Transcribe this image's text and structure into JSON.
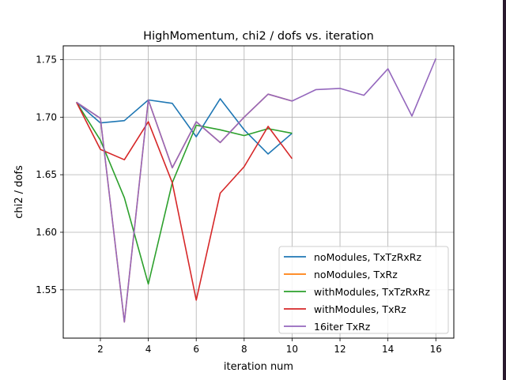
{
  "chart_data": {
    "type": "line",
    "title": "HighMomentum, chi2 / dofs vs. iteration",
    "xlabel": "iteration num",
    "ylabel": "chi2 / dofs",
    "xlim": [
      0.45,
      16.75
    ],
    "ylim": [
      1.508,
      1.762
    ],
    "xticks": [
      2,
      4,
      6,
      8,
      10,
      12,
      14,
      16
    ],
    "yticks": [
      1.55,
      1.6,
      1.65,
      1.7,
      1.75
    ],
    "ytick_labels": [
      "1.55",
      "1.60",
      "1.65",
      "1.70",
      "1.75"
    ],
    "grid": true,
    "legend_position": "lower-right",
    "series": [
      {
        "name": "noModules, TxTzRxRz",
        "color": "#1f77b4",
        "x": [
          1,
          2,
          3,
          4,
          5,
          6,
          7,
          8,
          9,
          10
        ],
        "y": [
          1.713,
          1.695,
          1.697,
          1.715,
          1.712,
          1.683,
          1.716,
          1.689,
          1.668,
          1.686
        ]
      },
      {
        "name": "noModules, TxRz",
        "color": "#ff7f0e",
        "x": [
          1,
          2,
          3,
          4,
          5,
          6,
          7,
          8,
          9,
          10
        ],
        "y": [
          1.713,
          1.699,
          1.522,
          1.715,
          1.656,
          1.696,
          1.678,
          1.7,
          1.72,
          1.714
        ]
      },
      {
        "name": "withModules, TxTzRxRz",
        "color": "#2ca02c",
        "x": [
          1,
          2,
          3,
          4,
          5,
          6,
          7,
          8,
          9,
          10
        ],
        "y": [
          1.713,
          1.68,
          1.63,
          1.555,
          1.643,
          1.693,
          1.689,
          1.684,
          1.69,
          1.686
        ]
      },
      {
        "name": "withModules, TxRz",
        "color": "#d62728",
        "x": [
          1,
          2,
          3,
          4,
          5,
          6,
          7,
          8,
          9,
          10
        ],
        "y": [
          1.713,
          1.672,
          1.663,
          1.696,
          1.643,
          1.541,
          1.634,
          1.657,
          1.692,
          1.664
        ]
      },
      {
        "name": "16iter TxRz",
        "color": "#9467bd",
        "x": [
          1,
          2,
          3,
          4,
          5,
          6,
          7,
          8,
          9,
          10,
          11,
          12,
          13,
          14,
          15,
          16
        ],
        "y": [
          1.713,
          1.699,
          1.522,
          1.715,
          1.656,
          1.696,
          1.678,
          1.7,
          1.72,
          1.714,
          1.724,
          1.725,
          1.719,
          1.742,
          1.701,
          1.751
        ]
      }
    ]
  }
}
